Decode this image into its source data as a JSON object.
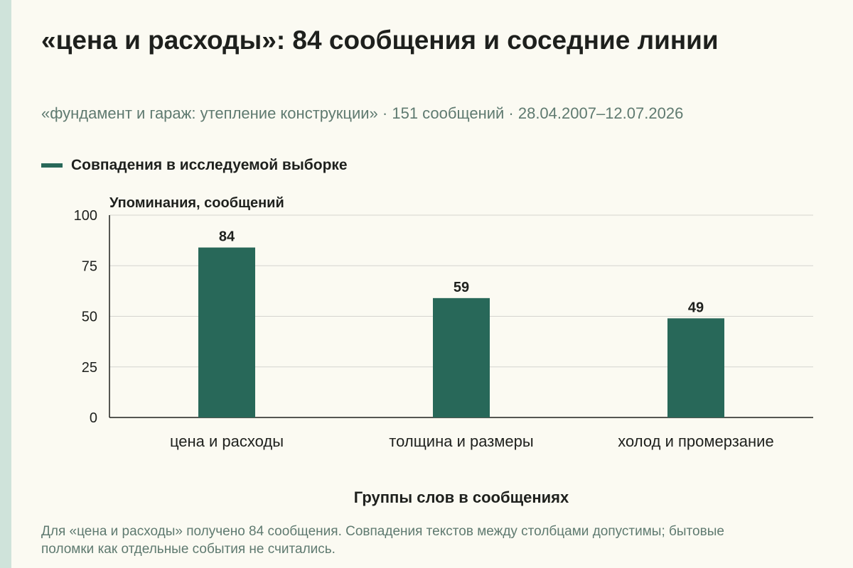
{
  "header": {
    "title": "«цена и расходы»: 84 сообщения и соседние линии",
    "subtitle": "«фундамент и гараж: утепление конструкции» · 151 сообщений · 28.04.2007–12.07.2026"
  },
  "legend": {
    "label": "Совпадения в исследуемой выборке"
  },
  "footnote": "Для «цена и расходы» получено 84 сообщения. Совпадения текстов между столбцами допустимы; бытовые поломки как отдельные события не считались.",
  "colors": {
    "bar": "#286859",
    "background": "#fbfaf2",
    "stripe": "#cfe3da"
  },
  "chart_data": {
    "type": "bar",
    "categories": [
      "цена и расходы",
      "толщина и размеры",
      "холод и промерзание"
    ],
    "series": [
      {
        "name": "Совпадения в исследуемой выборке",
        "values": [
          84,
          59,
          49
        ]
      }
    ],
    "xlabel": "Группы слов в сообщениях",
    "ylabel": "Упоминания, сообщений",
    "ylim": [
      0,
      100
    ],
    "yticks": [
      0,
      25,
      50,
      75,
      100
    ],
    "grid": true,
    "legend_position": "top-left",
    "data_labels": true
  }
}
